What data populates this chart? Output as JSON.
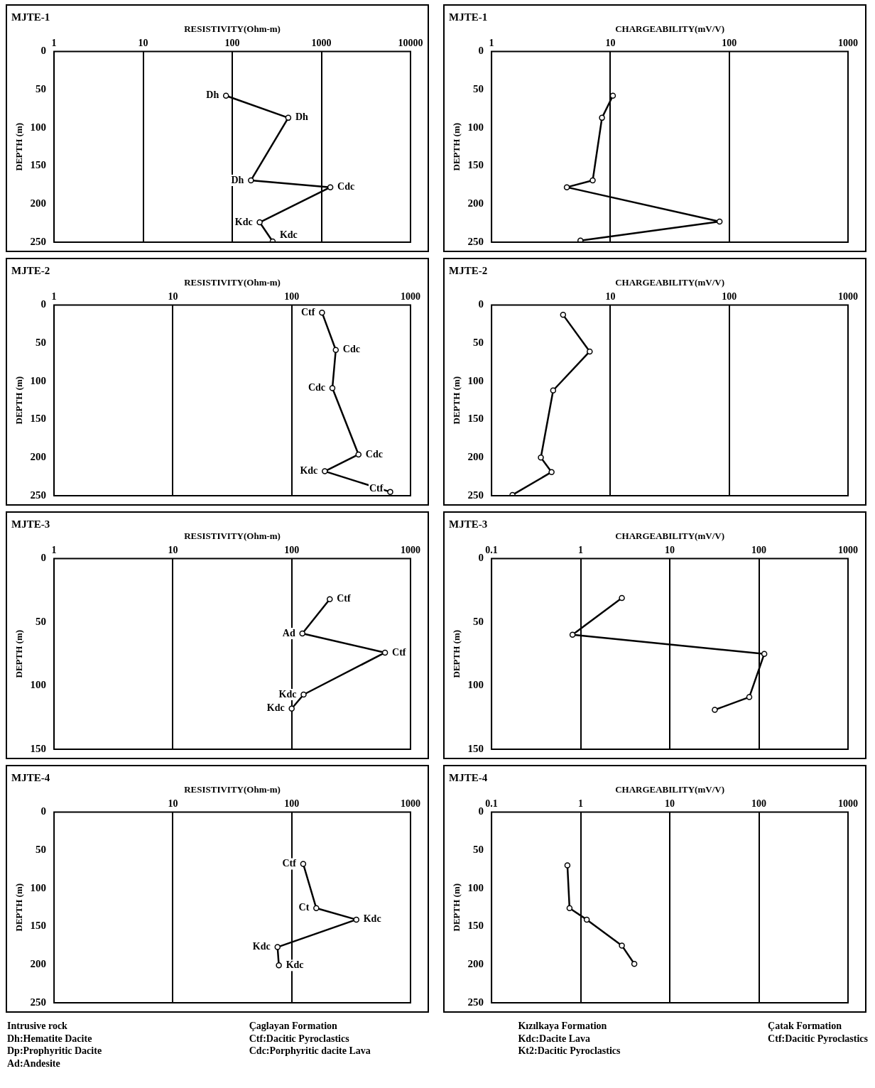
{
  "chart_data": [
    {
      "type": "line",
      "title": "MJTE-1",
      "xlabel": "RESISTIVITY(Ohm-m)",
      "ylabel": "DEPTH (m)",
      "log": "x",
      "grid": "x",
      "marker": "circle",
      "line_style": "solid",
      "xlim": [
        1,
        10000
      ],
      "xticks": [
        1,
        10,
        100,
        1000,
        10000
      ],
      "ylim": [
        250,
        0
      ],
      "yticks": [
        0,
        50,
        100,
        150,
        200,
        250
      ],
      "series": [
        {
          "color": "#000000",
          "x": [
            85,
            425,
            162,
            1260,
            203,
            284
          ],
          "values": [
            58,
            87,
            169,
            178,
            224,
            249
          ]
        }
      ],
      "annotations": [
        {
          "text": "Dh",
          "x": 85,
          "y": 58
        },
        {
          "text": "Dh",
          "x": 425,
          "y": 87
        },
        {
          "text": "Dh",
          "x": 162,
          "y": 169
        },
        {
          "text": "Cdc",
          "x": 1260,
          "y": 178
        },
        {
          "text": "Kdc",
          "x": 203,
          "y": 224
        },
        {
          "text": "Kdc",
          "x": 284,
          "y": 249
        }
      ]
    },
    {
      "type": "line",
      "title": "MJTE-1",
      "xlabel": "CHARGEABILITY(mV/V)",
      "ylabel": "DEPTH (m)",
      "log": "x",
      "grid": "x",
      "marker": "circle",
      "line_style": "solid",
      "xlim": [
        1,
        1000
      ],
      "xticks": [
        1,
        10,
        100,
        1000
      ],
      "ylim": [
        250,
        0
      ],
      "yticks": [
        0,
        50,
        100,
        150,
        200,
        250
      ],
      "series": [
        {
          "color": "#000000",
          "x": [
            10.5,
            8.5,
            7.1,
            4.3,
            83,
            5.6
          ],
          "values": [
            58,
            87,
            169,
            178,
            223,
            248
          ]
        }
      ]
    },
    {
      "type": "line",
      "title": "MJTE-2",
      "xlabel": "RESISTIVITY(Ohm-m)",
      "ylabel": "DEPTH (m)",
      "log": "x",
      "grid": "x",
      "marker": "circle",
      "line_style": "solid",
      "xlim": [
        1,
        1000
      ],
      "xticks": [
        1,
        10,
        100,
        1000
      ],
      "ylim": [
        250,
        0
      ],
      "yticks": [
        0,
        50,
        100,
        150,
        200,
        250
      ],
      "series": [
        {
          "color": "#000000",
          "x": [
            180,
            235,
            220,
            365,
            190,
            675
          ],
          "values": [
            10,
            59,
            109,
            196,
            218,
            245
          ]
        }
      ],
      "annotations": [
        {
          "text": "Ctf",
          "x": 180,
          "y": 10
        },
        {
          "text": "Cdc",
          "x": 235,
          "y": 59
        },
        {
          "text": "Cdc",
          "x": 220,
          "y": 109
        },
        {
          "text": "Cdc",
          "x": 365,
          "y": 196
        },
        {
          "text": "Kdc",
          "x": 190,
          "y": 218
        },
        {
          "text": "Ctf",
          "x": 675,
          "y": 245
        }
      ]
    },
    {
      "type": "line",
      "title": "MJTE-2",
      "xlabel": "CHARGEABILITY(mV/V)",
      "ylabel": "DEPTH (m)",
      "log": "x",
      "grid": "x",
      "marker": "circle",
      "line_style": "solid",
      "xlim": [
        1,
        1000
      ],
      "xticks": [
        10,
        100,
        1000
      ],
      "ylim": [
        250,
        0
      ],
      "yticks": [
        0,
        50,
        100,
        150,
        200,
        250
      ],
      "series": [
        {
          "color": "#000000",
          "x": [
            4.0,
            6.7,
            3.3,
            2.6,
            3.2,
            1.5
          ],
          "values": [
            13,
            61,
            112,
            200,
            219,
            249
          ]
        }
      ]
    },
    {
      "type": "line",
      "title": "MJTE-3",
      "xlabel": "RESISTIVITY(Ohm-m)",
      "ylabel": "DEPTH (m)",
      "log": "x",
      "grid": "x",
      "marker": "circle",
      "line_style": "solid",
      "xlim": [
        1,
        1000
      ],
      "xticks": [
        1,
        10,
        100,
        1000
      ],
      "ylim": [
        150,
        0
      ],
      "yticks": [
        0,
        50,
        100,
        150
      ],
      "series": [
        {
          "color": "#000000",
          "x": [
            209,
            123,
            610,
            126,
            100
          ],
          "values": [
            32,
            59,
            74,
            107,
            118
          ]
        }
      ],
      "annotations": [
        {
          "text": "Ctf",
          "x": 209,
          "y": 32
        },
        {
          "text": "Ad",
          "x": 123,
          "y": 59
        },
        {
          "text": "Ctf",
          "x": 610,
          "y": 74
        },
        {
          "text": "Kdc",
          "x": 126,
          "y": 107
        },
        {
          "text": "Kdc",
          "x": 100,
          "y": 118
        }
      ]
    },
    {
      "type": "line",
      "title": "MJTE-3",
      "xlabel": "CHARGEABILITY(mV/V)",
      "ylabel": "DEPTH (m)",
      "log": "x",
      "grid": "x",
      "marker": "circle",
      "line_style": "solid",
      "xlim": [
        0.1,
        1000
      ],
      "xticks": [
        0.1,
        1,
        10,
        100,
        1000
      ],
      "ylim": [
        150,
        0
      ],
      "yticks": [
        0,
        50,
        100,
        150
      ],
      "series": [
        {
          "color": "#000000",
          "x": [
            2.9,
            0.81,
            115,
            78,
            32
          ],
          "values": [
            31,
            60,
            75,
            109,
            119
          ]
        }
      ]
    },
    {
      "type": "line",
      "title": "MJTE-4",
      "xlabel": "RESISTIVITY(Ohm-m)",
      "ylabel": "DEPTH (m)",
      "log": "x",
      "grid": "x",
      "marker": "circle",
      "line_style": "solid",
      "xlim": [
        1,
        1000
      ],
      "xticks": [
        10,
        100,
        1000
      ],
      "ylim": [
        250,
        0
      ],
      "yticks": [
        0,
        50,
        100,
        150,
        200,
        250
      ],
      "series": [
        {
          "color": "#000000",
          "x": [
            125,
            161,
            350,
            76,
            78
          ],
          "values": [
            68,
            126,
            141,
            177,
            201
          ]
        }
      ],
      "annotations": [
        {
          "text": "Ctf",
          "x": 125,
          "y": 68
        },
        {
          "text": "Ct",
          "x": 161,
          "y": 126
        },
        {
          "text": "Kdc",
          "x": 350,
          "y": 141
        },
        {
          "text": "Kdc",
          "x": 76,
          "y": 177
        },
        {
          "text": "Kdc",
          "x": 78,
          "y": 201
        }
      ]
    },
    {
      "type": "line",
      "title": "MJTE-4",
      "xlabel": "CHARGEABILITY(mV/V)",
      "ylabel": "DEPTH (m)",
      "log": "x",
      "grid": "x",
      "marker": "circle",
      "line_style": "solid",
      "xlim": [
        0.1,
        1000
      ],
      "xticks": [
        0.1,
        1,
        10,
        100,
        1000
      ],
      "ylim": [
        250,
        0
      ],
      "yticks": [
        0,
        50,
        100,
        150,
        200,
        250
      ],
      "series": [
        {
          "color": "#000000",
          "x": [
            0.71,
            0.75,
            1.17,
            2.9,
            4.0
          ],
          "values": [
            70,
            126,
            141,
            175,
            199
          ]
        }
      ],
      "annotations": [
        "Intrusive rock\nDh:Hematite Dacite\nDp:Prophyritic Dacite\nAd:Andesite",
        "Çaglayan Formation\nCtf:Dacitic Pyroclastics\nCdc:Porphyritic dacite Lava",
        "Kızılkaya Formation\nKdc:Dacite Lava\nKt2:Dacitic Pyroclastics",
        "Çatak Formation\nCtf:Dacitic Pyroclastics"
      ]
    }
  ]
}
